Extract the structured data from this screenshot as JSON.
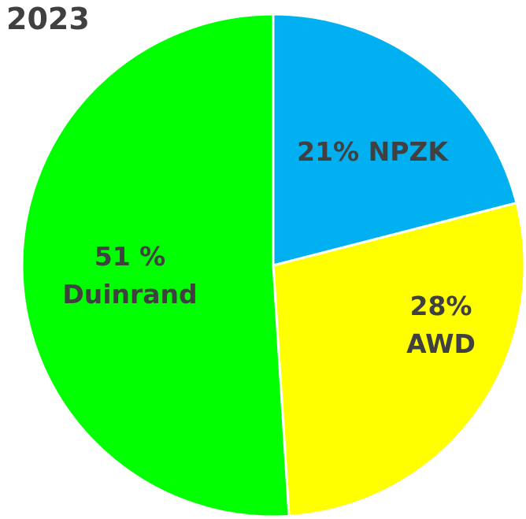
{
  "chart_data": {
    "type": "pie",
    "title": "2023",
    "values": [
      21,
      28,
      51
    ],
    "value_labels": [
      "21% NPZK",
      "28% AWD",
      "51 %\nDuinrand"
    ],
    "colors": [
      "#00b0f0",
      "#ffff00",
      "#00ff00"
    ]
  }
}
